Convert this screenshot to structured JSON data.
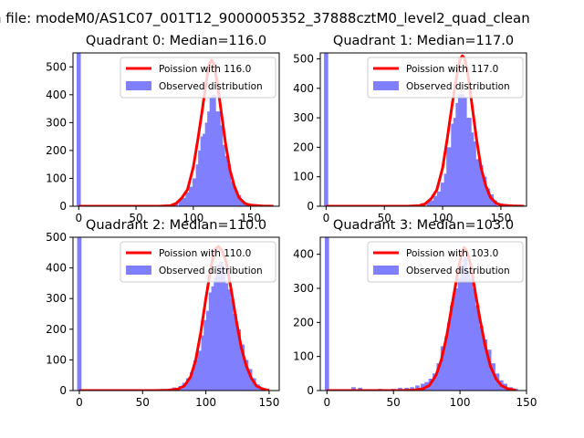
{
  "suptitle": "n file: modeM0/AS1C07_001T12_9000005352_37888cztM0_level2_quad_clean",
  "legend": {
    "poisson_prefix": "Poission with",
    "observed": "Observed distribution"
  },
  "colors": {
    "hist": "#8080ff",
    "poisson": "#ff0000"
  },
  "chart_data": [
    {
      "type": "bar",
      "title": "Quadrant 0: Median=116.0",
      "legend_label": "Poission with 116.0",
      "median": 116.0,
      "xlim": [
        -5,
        175
      ],
      "ylim": [
        0,
        550
      ],
      "xticks": [
        0,
        50,
        100,
        150
      ],
      "yticks": [
        0,
        100,
        200,
        300,
        400,
        500
      ],
      "bin_width": 3.6,
      "bins": [
        [
          0,
          550
        ],
        [
          25,
          2
        ],
        [
          45,
          2
        ],
        [
          65,
          3
        ],
        [
          75,
          5
        ],
        [
          80,
          5
        ],
        [
          85,
          10
        ],
        [
          89,
          25
        ],
        [
          92,
          30
        ],
        [
          95,
          50
        ],
        [
          98,
          70
        ],
        [
          101,
          100
        ],
        [
          104,
          150
        ],
        [
          106,
          200
        ],
        [
          108,
          250
        ],
        [
          110,
          260
        ],
        [
          112,
          300
        ],
        [
          114,
          340
        ],
        [
          116,
          390
        ],
        [
          118,
          400
        ],
        [
          120,
          340
        ],
        [
          122,
          340
        ],
        [
          124,
          290
        ],
        [
          126,
          220
        ],
        [
          128,
          180
        ],
        [
          131,
          150
        ],
        [
          134,
          90
        ],
        [
          137,
          60
        ],
        [
          140,
          40
        ],
        [
          143,
          20
        ],
        [
          146,
          10
        ],
        [
          150,
          5
        ],
        [
          155,
          2
        ]
      ],
      "poisson_x": [
        0,
        60,
        70,
        80,
        85,
        90,
        95,
        100,
        104,
        108,
        111,
        114,
        116,
        118,
        121,
        124,
        128,
        132,
        136,
        140,
        145,
        150,
        160,
        170
      ],
      "poisson_y": [
        0,
        0,
        0,
        2,
        10,
        30,
        60,
        140,
        240,
        350,
        440,
        510,
        525,
        510,
        440,
        350,
        230,
        130,
        70,
        30,
        10,
        4,
        1,
        0
      ]
    },
    {
      "type": "bar",
      "title": "Quadrant 1: Median=117.0",
      "legend_label": "Poission with 117.0",
      "median": 117.0,
      "xlim": [
        -5,
        172
      ],
      "ylim": [
        0,
        520
      ],
      "xticks": [
        0,
        50,
        100,
        150
      ],
      "yticks": [
        0,
        100,
        200,
        300,
        400,
        500
      ],
      "bin_width": 3.6,
      "bins": [
        [
          0,
          520
        ],
        [
          60,
          2
        ],
        [
          70,
          3
        ],
        [
          78,
          5
        ],
        [
          83,
          10
        ],
        [
          88,
          15
        ],
        [
          91,
          20
        ],
        [
          94,
          35
        ],
        [
          97,
          50
        ],
        [
          100,
          80
        ],
        [
          103,
          110
        ],
        [
          105,
          200
        ],
        [
          107,
          200
        ],
        [
          109,
          280
        ],
        [
          111,
          300
        ],
        [
          113,
          350
        ],
        [
          115,
          380
        ],
        [
          117,
          380
        ],
        [
          119,
          370
        ],
        [
          121,
          300
        ],
        [
          123,
          300
        ],
        [
          125,
          250
        ],
        [
          127,
          220
        ],
        [
          130,
          160
        ],
        [
          133,
          140
        ],
        [
          136,
          100
        ],
        [
          139,
          60
        ],
        [
          142,
          40
        ],
        [
          145,
          20
        ],
        [
          150,
          10
        ],
        [
          155,
          5
        ]
      ],
      "poisson_x": [
        0,
        60,
        70,
        80,
        85,
        90,
        95,
        100,
        104,
        108,
        112,
        115,
        117,
        119,
        122,
        125,
        129,
        133,
        137,
        141,
        146,
        150,
        160,
        170
      ],
      "poisson_y": [
        0,
        0,
        0,
        2,
        8,
        25,
        55,
        130,
        230,
        340,
        440,
        500,
        510,
        500,
        440,
        350,
        230,
        130,
        70,
        30,
        10,
        4,
        1,
        0
      ]
    },
    {
      "type": "bar",
      "title": "Quadrant 2: Median=110.0",
      "legend_label": "Poission with 110.0",
      "median": 110.0,
      "xlim": [
        -5,
        158
      ],
      "ylim": [
        0,
        500
      ],
      "xticks": [
        0,
        50,
        100,
        150
      ],
      "yticks": [
        0,
        100,
        200,
        300,
        400,
        500
      ],
      "bin_width": 3.4,
      "bins": [
        [
          0,
          500
        ],
        [
          60,
          2
        ],
        [
          70,
          5
        ],
        [
          75,
          10
        ],
        [
          80,
          15
        ],
        [
          83,
          25
        ],
        [
          86,
          40
        ],
        [
          89,
          60
        ],
        [
          92,
          100
        ],
        [
          95,
          130
        ],
        [
          98,
          180
        ],
        [
          100,
          230
        ],
        [
          102,
          260
        ],
        [
          104,
          320
        ],
        [
          106,
          340
        ],
        [
          108,
          370
        ],
        [
          110,
          410
        ],
        [
          112,
          420
        ],
        [
          114,
          400
        ],
        [
          116,
          350
        ],
        [
          118,
          330
        ],
        [
          120,
          300
        ],
        [
          123,
          250
        ],
        [
          126,
          200
        ],
        [
          129,
          150
        ],
        [
          132,
          100
        ],
        [
          135,
          70
        ],
        [
          138,
          40
        ],
        [
          141,
          20
        ],
        [
          144,
          10
        ],
        [
          148,
          5
        ]
      ],
      "poisson_x": [
        0,
        60,
        70,
        78,
        83,
        88,
        92,
        96,
        100,
        104,
        107,
        110,
        113,
        116,
        120,
        124,
        128,
        132,
        136,
        140,
        145,
        150
      ],
      "poisson_y": [
        0,
        0,
        1,
        5,
        15,
        45,
        100,
        190,
        300,
        400,
        460,
        470,
        455,
        420,
        330,
        230,
        140,
        80,
        40,
        15,
        5,
        1
      ]
    },
    {
      "type": "bar",
      "title": "Quadrant 3: Median=103.0",
      "legend_label": "Poission with 103.0",
      "median": 103.0,
      "xlim": [
        -5,
        150
      ],
      "ylim": [
        0,
        450
      ],
      "xticks": [
        0,
        50,
        100,
        150
      ],
      "yticks": [
        0,
        100,
        200,
        300,
        400
      ],
      "bin_width": 3.2,
      "bins": [
        [
          0,
          450
        ],
        [
          20,
          10
        ],
        [
          25,
          8
        ],
        [
          40,
          5
        ],
        [
          45,
          3
        ],
        [
          50,
          5
        ],
        [
          55,
          8
        ],
        [
          60,
          8
        ],
        [
          64,
          10
        ],
        [
          68,
          15
        ],
        [
          72,
          20
        ],
        [
          75,
          25
        ],
        [
          78,
          35
        ],
        [
          81,
          50
        ],
        [
          84,
          80
        ],
        [
          87,
          130
        ],
        [
          90,
          160
        ],
        [
          92,
          200
        ],
        [
          94,
          250
        ],
        [
          96,
          280
        ],
        [
          98,
          300
        ],
        [
          100,
          330
        ],
        [
          102,
          370
        ],
        [
          104,
          390
        ],
        [
          106,
          350
        ],
        [
          108,
          330
        ],
        [
          110,
          300
        ],
        [
          113,
          250
        ],
        [
          116,
          190
        ],
        [
          119,
          150
        ],
        [
          122,
          120
        ],
        [
          125,
          80
        ],
        [
          128,
          50
        ],
        [
          131,
          30
        ],
        [
          134,
          20
        ],
        [
          138,
          10
        ],
        [
          142,
          5
        ]
      ],
      "poisson_x": [
        0,
        55,
        65,
        72,
        77,
        82,
        86,
        90,
        94,
        98,
        101,
        103,
        105,
        108,
        111,
        115,
        119,
        123,
        127,
        131,
        136,
        142
      ],
      "poisson_y": [
        0,
        0,
        1,
        5,
        15,
        45,
        90,
        160,
        250,
        340,
        400,
        420,
        410,
        370,
        300,
        210,
        130,
        70,
        35,
        15,
        5,
        1
      ]
    }
  ]
}
